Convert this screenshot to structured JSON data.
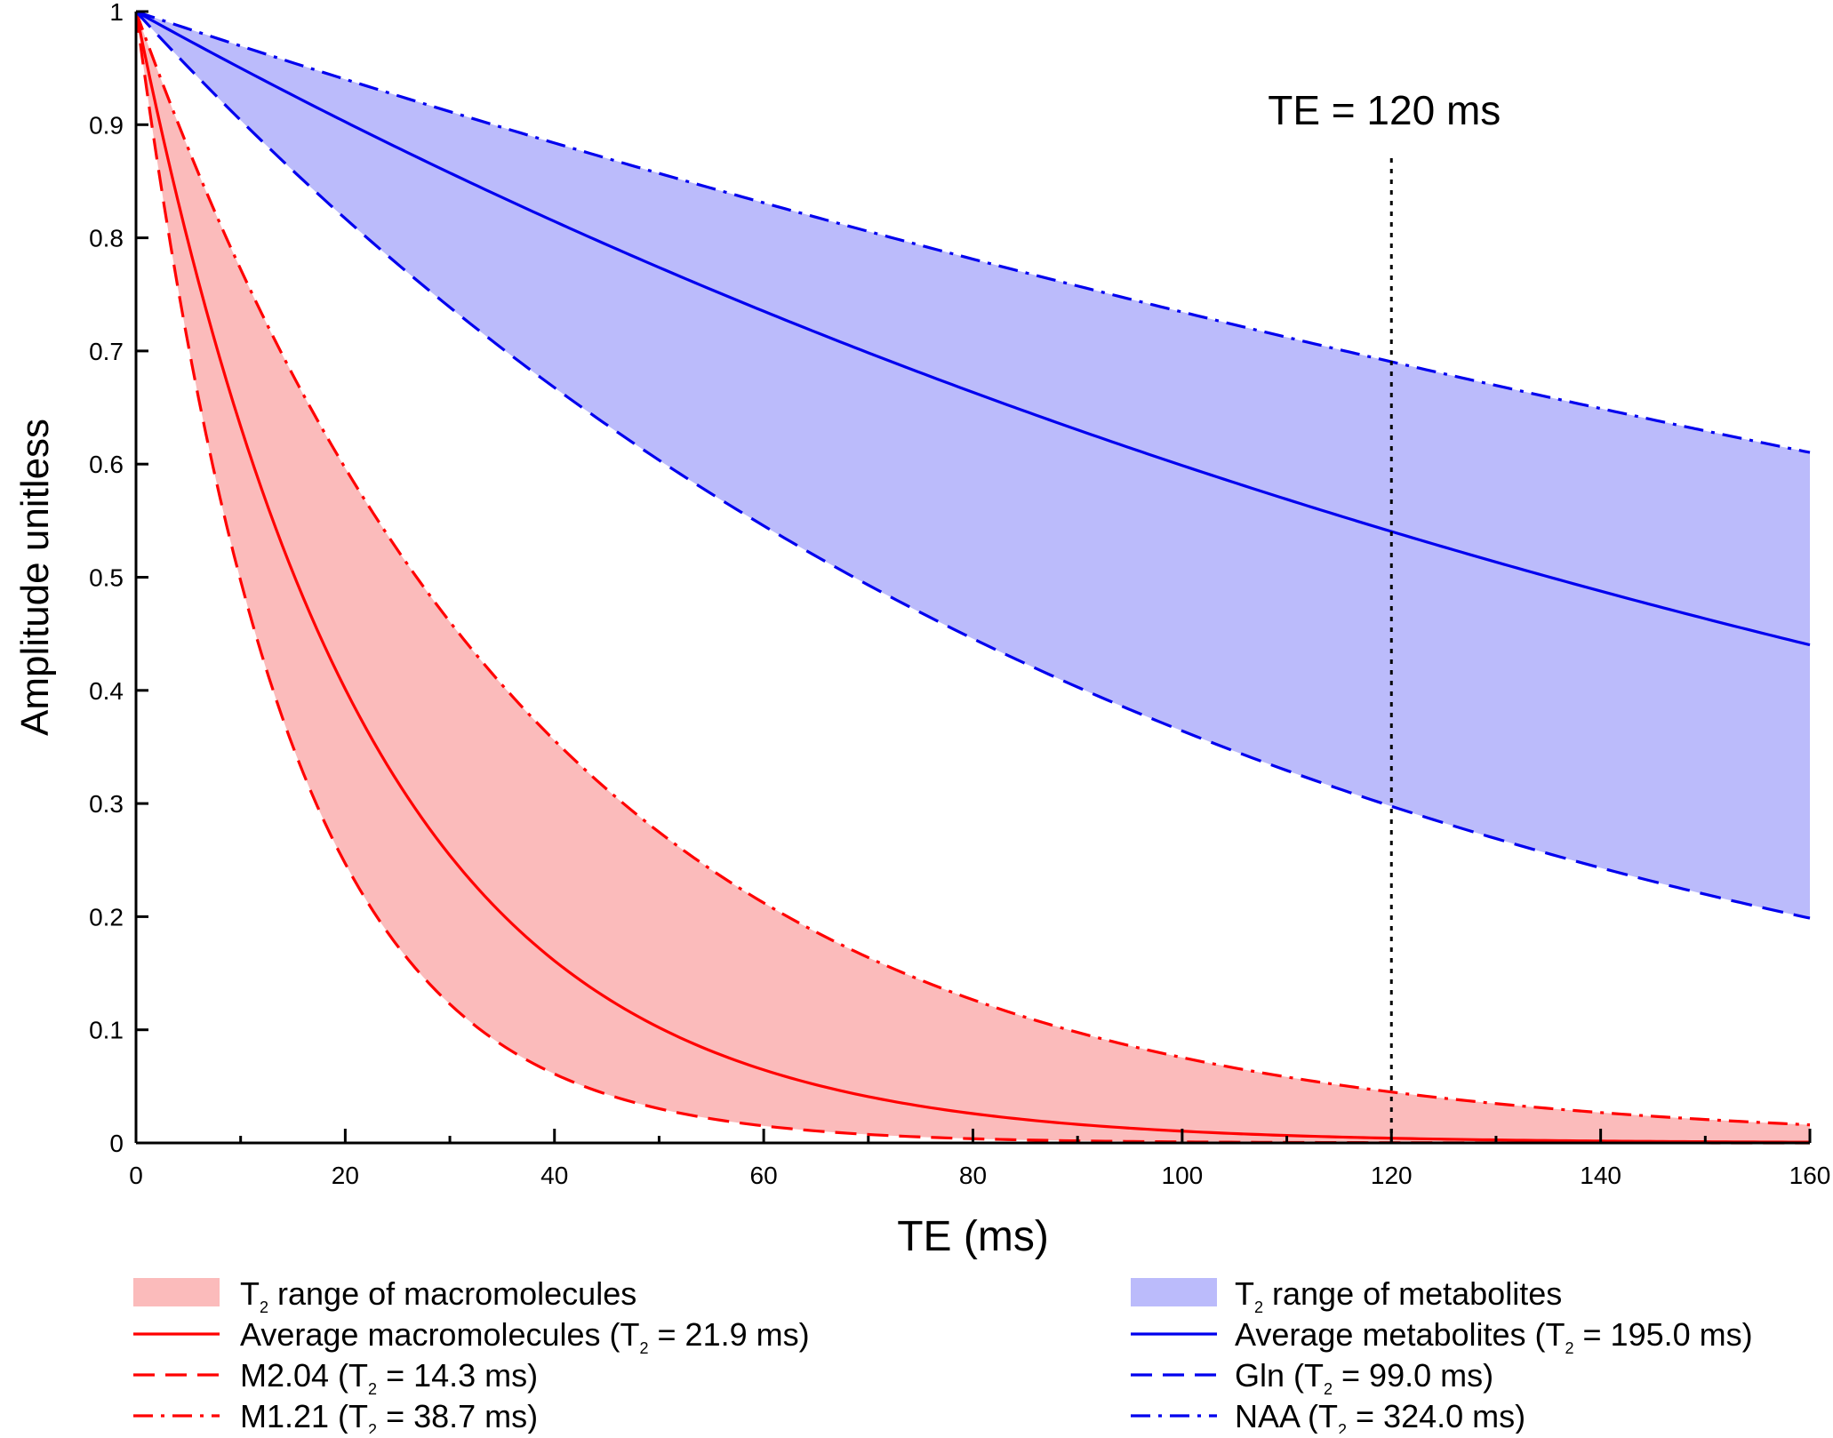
{
  "chart_data": {
    "type": "line",
    "xlabel": "TE (ms)",
    "ylabel": "Amplitude unitless",
    "xlim": [
      0,
      160
    ],
    "ylim": [
      0,
      1
    ],
    "x_ticks": [
      "0",
      "20",
      "40",
      "60",
      "80",
      "100",
      "120",
      "140",
      "160"
    ],
    "y_ticks": [
      "0",
      "0.1",
      "0.2",
      "0.3",
      "0.4",
      "0.5",
      "0.6",
      "0.7",
      "0.8",
      "0.9",
      "1"
    ],
    "grid": false,
    "legend_position": "bottom",
    "annotation": {
      "text": "TE = 120 ms",
      "x": 120
    },
    "x": [
      0,
      5,
      10,
      15,
      20,
      25,
      30,
      35,
      40,
      45,
      50,
      55,
      60,
      65,
      70,
      75,
      80,
      85,
      90,
      95,
      100,
      105,
      110,
      115,
      120,
      125,
      130,
      135,
      140,
      145,
      150,
      155,
      160
    ],
    "bands": [
      {
        "id": "macromolecules-band",
        "legend_prefix": "T",
        "legend_sub": "2",
        "legend_suffix": " range of macromolecules",
        "color": "#fbbbbb",
        "lower_t2": 14.3,
        "upper_t2": 38.7
      },
      {
        "id": "metabolites-band",
        "legend_prefix": "T",
        "legend_sub": "2",
        "legend_suffix": " range of metabolites",
        "color": "#bbbbfb",
        "lower_t2": 99.0,
        "upper_t2": 324.0
      }
    ],
    "series": [
      {
        "id": "avg-macromolecules",
        "legend_prefix": "Average macromolecules (T",
        "legend_sub": "2",
        "legend_suffix": " = 21.9 ms)",
        "t2": 21.9,
        "color": "#ff0000",
        "style": "solid",
        "values": [
          1,
          0.796,
          0.633,
          0.504,
          0.401,
          0.319,
          0.254,
          0.202,
          0.161,
          0.128,
          0.102,
          0.081,
          0.065,
          0.051,
          0.041,
          0.033,
          0.026,
          0.021,
          0.016,
          0.013,
          0.01,
          0.008,
          0.007,
          0.005,
          0.004,
          0.003,
          0.003,
          0.002,
          0.002,
          0.001,
          0.001,
          0.001,
          0.001
        ]
      },
      {
        "id": "m204",
        "legend_prefix": "M2.04 (T",
        "legend_sub": "2",
        "legend_suffix": " = 14.3 ms)",
        "t2": 14.3,
        "color": "#ff0000",
        "style": "dashed",
        "values": [
          1,
          0.705,
          0.497,
          0.35,
          0.247,
          0.174,
          0.123,
          0.087,
          0.061,
          0.043,
          0.03,
          0.021,
          0.015,
          0.011,
          0.007,
          0.005,
          0.004,
          0.003,
          0.002,
          0.001,
          0.001,
          0.001,
          0.0005,
          0.0003,
          0.0002,
          0.0002,
          0.0001,
          0.0001,
          0.0001,
          0,
          0,
          0,
          0
        ]
      },
      {
        "id": "m121",
        "legend_prefix": "M1.21 (T",
        "legend_sub": "2",
        "legend_suffix": " = 38.7 ms)",
        "t2": 38.7,
        "color": "#ff0000",
        "style": "dashdot",
        "values": [
          1,
          0.879,
          0.772,
          0.679,
          0.596,
          0.524,
          0.461,
          0.405,
          0.356,
          0.313,
          0.275,
          0.242,
          0.212,
          0.187,
          0.164,
          0.144,
          0.127,
          0.111,
          0.098,
          0.086,
          0.076,
          0.066,
          0.058,
          0.051,
          0.045,
          0.04,
          0.035,
          0.031,
          0.027,
          0.024,
          0.021,
          0.018,
          0.016
        ]
      },
      {
        "id": "avg-metabolites",
        "legend_prefix": "Average metabolites (T",
        "legend_sub": "2",
        "legend_suffix": " = 195.0 ms)",
        "t2": 195.0,
        "color": "#0000ee",
        "style": "solid",
        "values": [
          1,
          0.975,
          0.95,
          0.926,
          0.903,
          0.88,
          0.857,
          0.836,
          0.815,
          0.794,
          0.774,
          0.754,
          0.735,
          0.717,
          0.698,
          0.681,
          0.663,
          0.647,
          0.63,
          0.614,
          0.599,
          0.584,
          0.569,
          0.554,
          0.54,
          0.527,
          0.513,
          0.5,
          0.488,
          0.475,
          0.463,
          0.452,
          0.44
        ]
      },
      {
        "id": "gln",
        "legend_prefix": "Gln (T",
        "legend_sub": "2",
        "legend_suffix": " = 99.0 ms)",
        "t2": 99.0,
        "color": "#0000ee",
        "style": "dashed",
        "values": [
          1,
          0.951,
          0.904,
          0.859,
          0.817,
          0.777,
          0.739,
          0.702,
          0.668,
          0.635,
          0.603,
          0.574,
          0.545,
          0.519,
          0.493,
          0.469,
          0.446,
          0.424,
          0.403,
          0.383,
          0.364,
          0.346,
          0.329,
          0.313,
          0.298,
          0.283,
          0.269,
          0.256,
          0.243,
          0.231,
          0.22,
          0.209,
          0.199
        ]
      },
      {
        "id": "naa",
        "legend_prefix": "NAA (T",
        "legend_sub": "2",
        "legend_suffix": " = 324.0 ms)",
        "t2": 324.0,
        "color": "#0000ee",
        "style": "dashdot",
        "values": [
          1,
          0.985,
          0.97,
          0.955,
          0.94,
          0.926,
          0.912,
          0.898,
          0.884,
          0.87,
          0.857,
          0.844,
          0.831,
          0.818,
          0.806,
          0.793,
          0.781,
          0.769,
          0.757,
          0.746,
          0.734,
          0.723,
          0.712,
          0.701,
          0.69,
          0.68,
          0.669,
          0.659,
          0.649,
          0.639,
          0.629,
          0.62,
          0.61
        ]
      }
    ]
  }
}
